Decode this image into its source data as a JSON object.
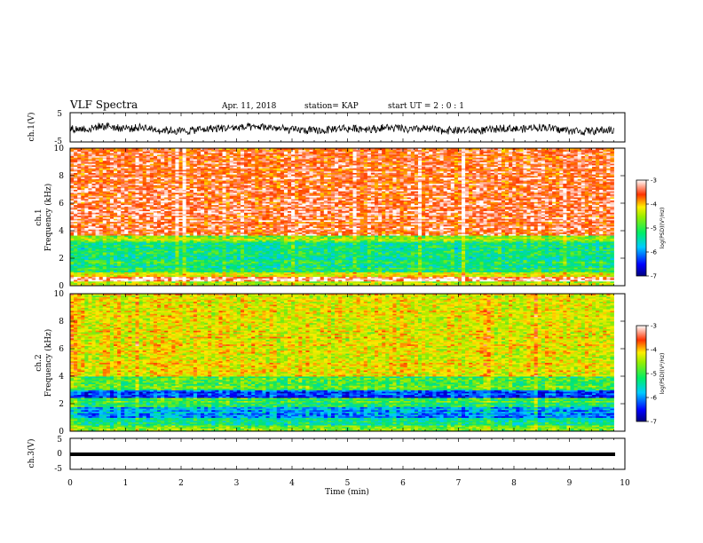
{
  "header": {
    "title": "VLF Spectra",
    "date": "Apr. 11, 2018",
    "station": "station= KAP",
    "start": "start  UT =   2 : 0  : 1"
  },
  "colors": {
    "low": "#0000cc",
    "mid_low": "#00ccff",
    "mid": "#33dd55",
    "mid_high": "#ffee00",
    "high": "#ff2200"
  },
  "chart_data": [
    {
      "type": "line",
      "panel": "ch1-waveform",
      "ylabel": "ch.1(V)",
      "ylim": [
        -5,
        5
      ],
      "yticks": [
        "5",
        "-5"
      ],
      "xlim": [
        0,
        10
      ],
      "description_values": "noisy waveform oscillating roughly between -3 V and +2 V across 0–9.8 min"
    },
    {
      "type": "heatmap",
      "panel": "ch1-spectrogram",
      "ylabel_line1": "ch.1",
      "ylabel_line2": "Frequency (kHz)",
      "ylim": [
        0,
        10
      ],
      "yticks": [
        "0",
        "2",
        "4",
        "6",
        "8",
        "10"
      ],
      "xlim": [
        0,
        10
      ],
      "data_end_min": 9.8,
      "colorbar": {
        "label": "log(PSD)(V²/Hz)",
        "ticks": [
          "-3",
          "-4",
          "-5",
          "-6",
          "-7"
        ],
        "range": [
          -7,
          -3
        ]
      },
      "bands": [
        {
          "f_lo": 0.0,
          "f_hi": 0.3,
          "level": -4.5
        },
        {
          "f_lo": 0.3,
          "f_hi": 0.7,
          "level": -3.2
        },
        {
          "f_lo": 0.7,
          "f_hi": 1.0,
          "level": -4.3
        },
        {
          "f_lo": 1.0,
          "f_hi": 3.2,
          "level": -5.2
        },
        {
          "f_lo": 3.2,
          "f_hi": 3.7,
          "level": -4.6
        },
        {
          "f_lo": 3.7,
          "f_hi": 10.0,
          "level": -3.4
        }
      ]
    },
    {
      "type": "heatmap",
      "panel": "ch2-spectrogram",
      "ylabel_line1": "ch.2",
      "ylabel_line2": "Frequency (kHz)",
      "ylim": [
        0,
        10
      ],
      "yticks": [
        "0",
        "2",
        "4",
        "6",
        "8",
        "10"
      ],
      "xlim": [
        0,
        10
      ],
      "data_end_min": 9.8,
      "colorbar": {
        "label": "log(PSD)(V²/Hz)",
        "ticks": [
          "-3",
          "-4",
          "-5",
          "-6",
          "-7"
        ],
        "range": [
          -7,
          -3
        ]
      },
      "bands": [
        {
          "f_lo": 0.0,
          "f_hi": 0.4,
          "level": -4.7
        },
        {
          "f_lo": 0.4,
          "f_hi": 1.0,
          "level": -5.3
        },
        {
          "f_lo": 1.0,
          "f_hi": 1.8,
          "level": -5.9
        },
        {
          "f_lo": 1.8,
          "f_hi": 2.4,
          "level": -5.0
        },
        {
          "f_lo": 2.4,
          "f_hi": 3.0,
          "level": -6.3
        },
        {
          "f_lo": 3.0,
          "f_hi": 4.0,
          "level": -4.9
        },
        {
          "f_lo": 4.0,
          "f_hi": 10.0,
          "level": -4.2
        }
      ]
    },
    {
      "type": "line",
      "panel": "ch3-waveform",
      "ylabel": "ch.3(V)",
      "ylim": [
        -5,
        5
      ],
      "yticks": [
        "5",
        "0",
        "-5"
      ],
      "xlim": [
        0,
        10
      ],
      "xlabel": "Time  (min)",
      "xticks": [
        "0",
        "1",
        "2",
        "3",
        "4",
        "5",
        "6",
        "7",
        "8",
        "9",
        "10"
      ],
      "constant_value": 0
    }
  ]
}
